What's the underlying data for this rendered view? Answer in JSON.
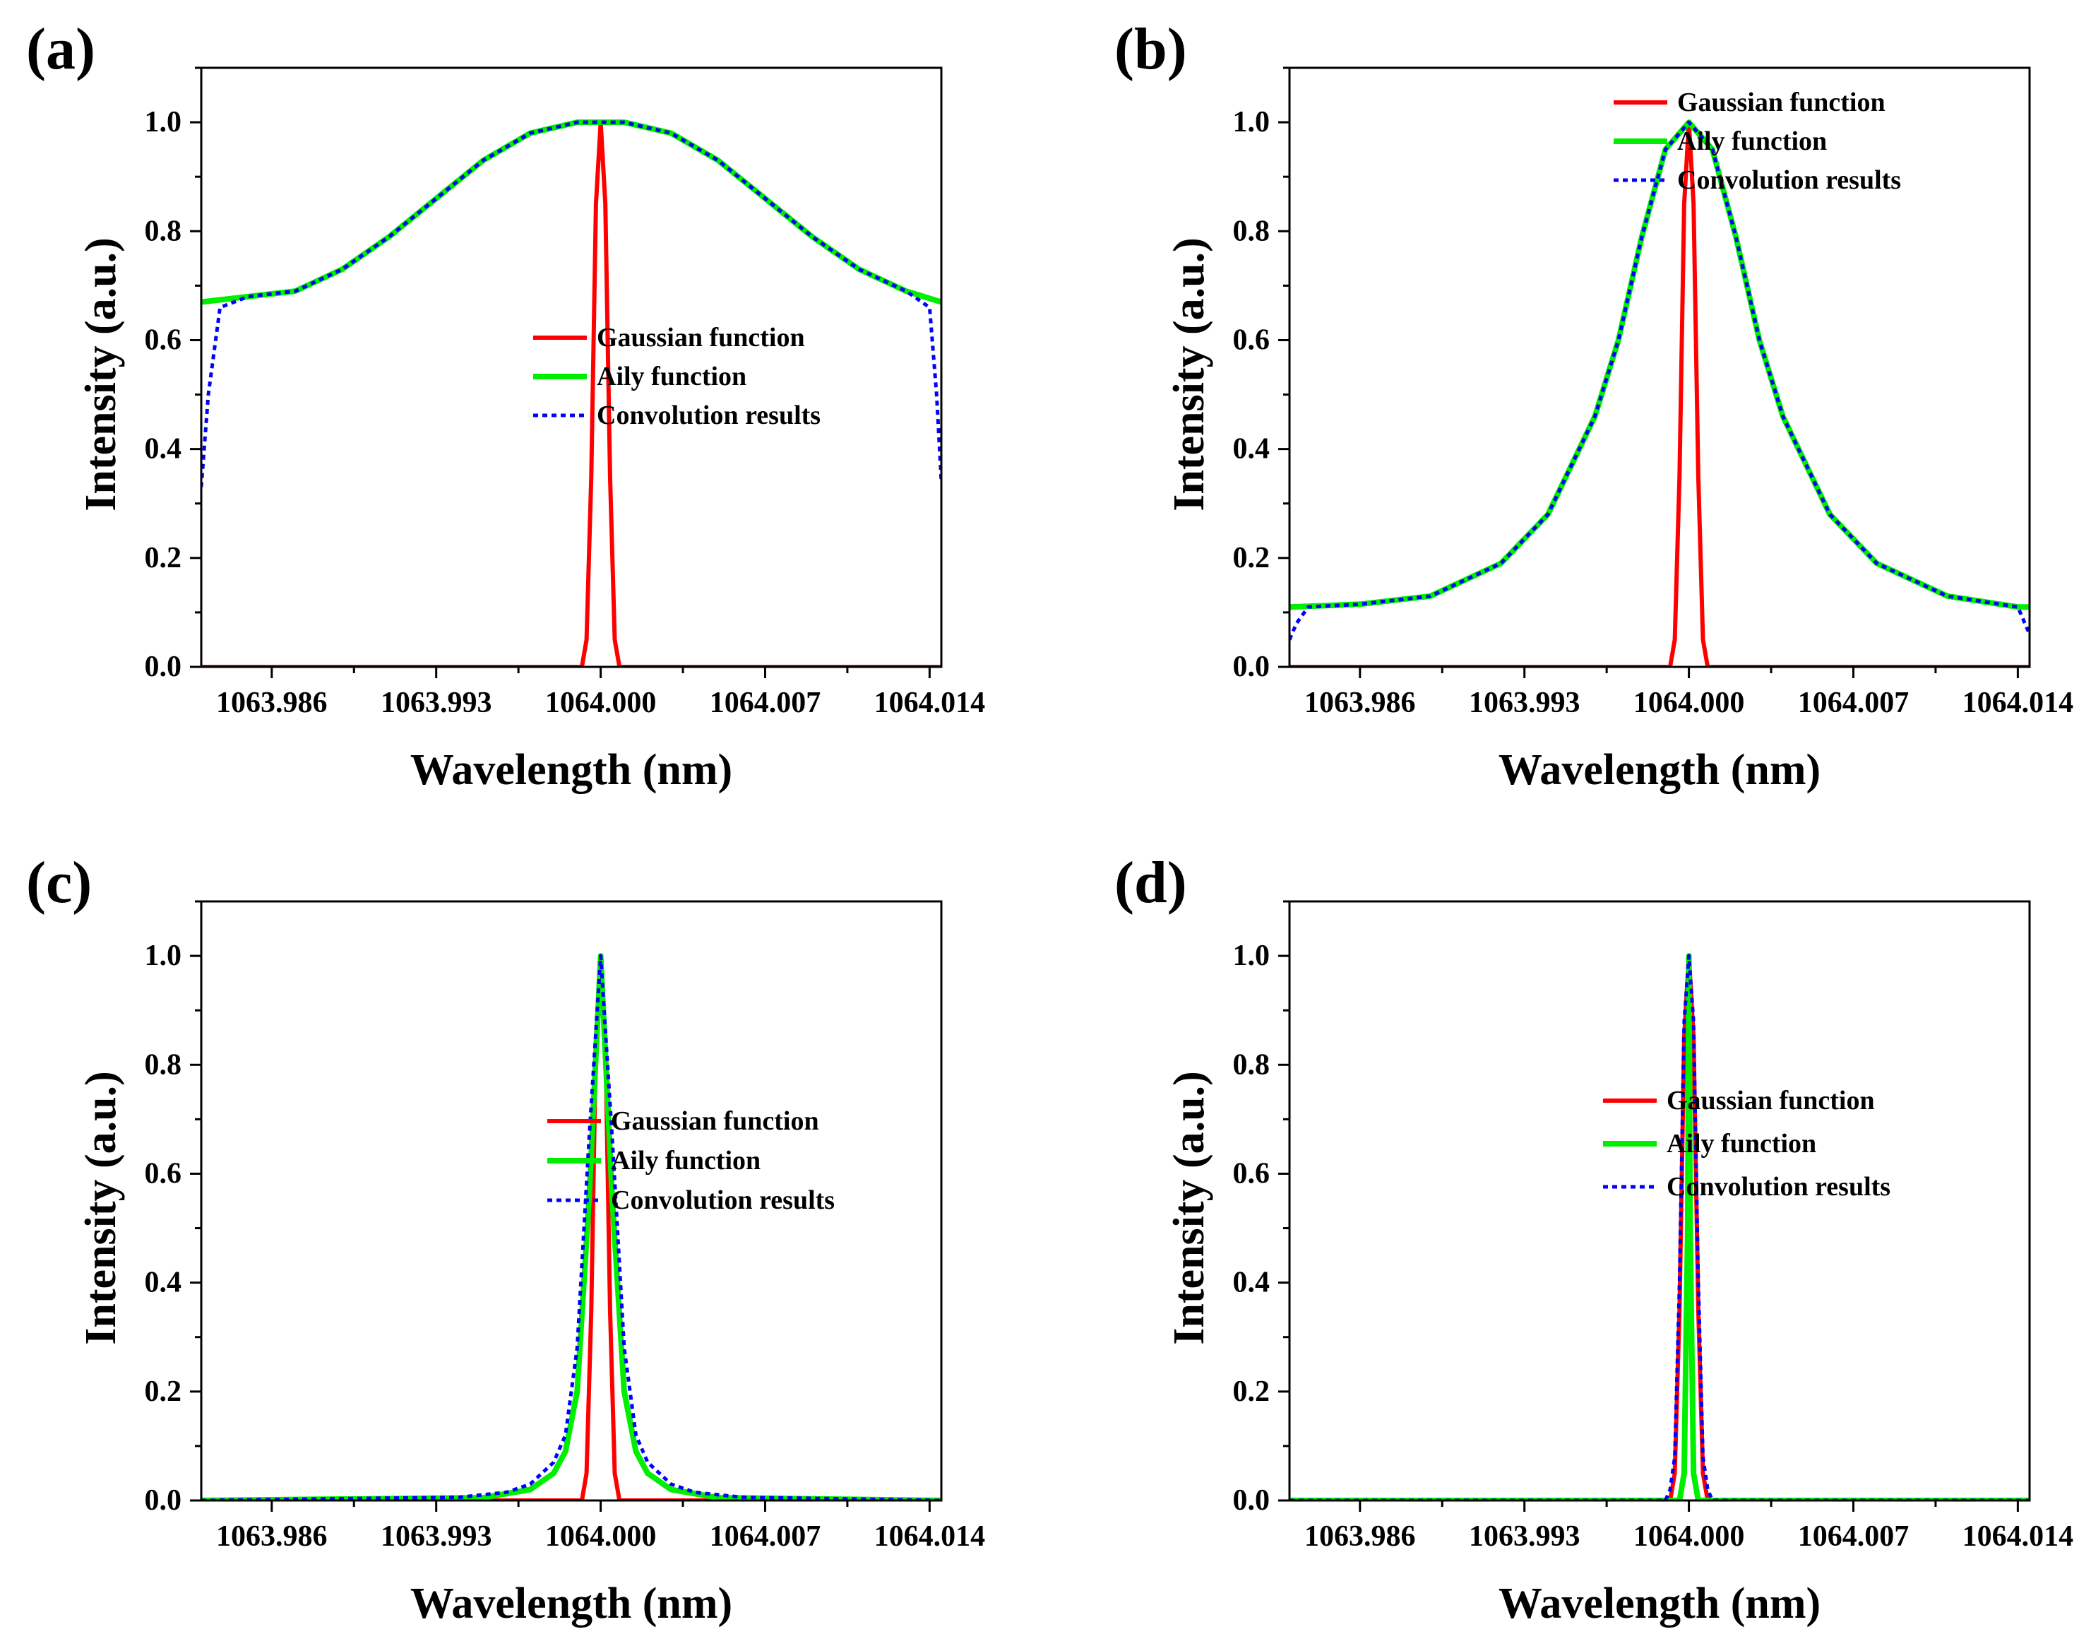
{
  "colors": {
    "gaussian": "#ff0000",
    "airy": "#00ee00",
    "convolution": "#0000ff",
    "axis": "#000000"
  },
  "chart_data": [
    {
      "panel": "(a)",
      "type": "line",
      "xlabel": "Wavelength (nm)",
      "ylabel": "Intensity (a.u.)",
      "xlim": [
        1063.983,
        1064.0145
      ],
      "ylim": [
        0,
        1.1
      ],
      "xticks": [
        1063.986,
        1063.993,
        1064.0,
        1064.007,
        1064.014
      ],
      "xticklabels": [
        "1063.986",
        "1063.993",
        "1064.000",
        "1064.007",
        "1064.014"
      ],
      "yticks": [
        0.0,
        0.2,
        0.4,
        0.6,
        0.8,
        1.0
      ],
      "yticklabels": [
        "0.0",
        "0.2",
        "0.4",
        "0.6",
        "0.8",
        "1.0"
      ],
      "legend": [
        "Gaussian function",
        "Aily function",
        "Convolution results"
      ],
      "legend_position": "center-right",
      "series": [
        {
          "name": "Gaussian function",
          "x": [
            1063.983,
            1063.9992,
            1063.9994,
            1063.9996,
            1063.9998,
            1064.0,
            1064.0002,
            1064.0004,
            1064.0006,
            1064.0008,
            1064.0145
          ],
          "y": [
            0.0,
            0.0,
            0.05,
            0.35,
            0.85,
            1.0,
            0.85,
            0.35,
            0.05,
            0.0,
            0.0
          ]
        },
        {
          "name": "Aily function",
          "x": [
            1063.983,
            1063.985,
            1063.987,
            1063.989,
            1063.991,
            1063.993,
            1063.995,
            1063.997,
            1063.999,
            1064.0,
            1064.001,
            1064.003,
            1064.005,
            1064.007,
            1064.009,
            1064.011,
            1064.013,
            1064.0145
          ],
          "y": [
            0.67,
            0.68,
            0.69,
            0.73,
            0.79,
            0.86,
            0.93,
            0.98,
            1.0,
            1.0,
            1.0,
            0.98,
            0.93,
            0.86,
            0.79,
            0.73,
            0.69,
            0.67
          ]
        },
        {
          "name": "Convolution results",
          "x": [
            1063.983,
            1063.9833,
            1063.9838,
            1063.985,
            1063.987,
            1063.989,
            1063.991,
            1063.993,
            1063.995,
            1063.997,
            1063.999,
            1064.0,
            1064.001,
            1064.003,
            1064.005,
            1064.007,
            1064.009,
            1064.011,
            1064.013,
            1064.014,
            1064.0143,
            1064.0145
          ],
          "y": [
            0.33,
            0.5,
            0.66,
            0.68,
            0.69,
            0.73,
            0.79,
            0.86,
            0.93,
            0.98,
            1.0,
            1.0,
            1.0,
            0.98,
            0.93,
            0.86,
            0.79,
            0.73,
            0.69,
            0.66,
            0.5,
            0.34
          ]
        }
      ]
    },
    {
      "panel": "(b)",
      "type": "line",
      "xlabel": "Wavelength (nm)",
      "ylabel": "Intensity (a.u.)",
      "xlim": [
        1063.983,
        1064.0145
      ],
      "ylim": [
        0,
        1.1
      ],
      "xticks": [
        1063.986,
        1063.993,
        1064.0,
        1064.007,
        1064.014
      ],
      "xticklabels": [
        "1063.986",
        "1063.993",
        "1064.000",
        "1064.007",
        "1064.014"
      ],
      "yticks": [
        0.0,
        0.2,
        0.4,
        0.6,
        0.8,
        1.0
      ],
      "yticklabels": [
        "0.0",
        "0.2",
        "0.4",
        "0.6",
        "0.8",
        "1.0"
      ],
      "legend": [
        "Gaussian function",
        "Aily function",
        "Convolution results"
      ],
      "legend_position": "top-right",
      "series": [
        {
          "name": "Gaussian function",
          "x": [
            1063.983,
            1063.9992,
            1063.9994,
            1063.9996,
            1063.9998,
            1064.0,
            1064.0002,
            1064.0004,
            1064.0006,
            1064.0008,
            1064.0145
          ],
          "y": [
            0.0,
            0.0,
            0.05,
            0.35,
            0.85,
            1.0,
            0.85,
            0.35,
            0.05,
            0.0,
            0.0
          ]
        },
        {
          "name": "Aily function",
          "x": [
            1063.983,
            1063.986,
            1063.989,
            1063.992,
            1063.994,
            1063.996,
            1063.997,
            1063.998,
            1063.999,
            1064.0,
            1064.001,
            1064.002,
            1064.003,
            1064.004,
            1064.006,
            1064.008,
            1064.011,
            1064.014,
            1064.0145
          ],
          "y": [
            0.11,
            0.115,
            0.13,
            0.19,
            0.28,
            0.46,
            0.6,
            0.79,
            0.95,
            1.0,
            0.95,
            0.79,
            0.6,
            0.46,
            0.28,
            0.19,
            0.13,
            0.11,
            0.11
          ]
        },
        {
          "name": "Convolution results",
          "x": [
            1063.983,
            1063.9833,
            1063.9838,
            1063.986,
            1063.989,
            1063.992,
            1063.994,
            1063.996,
            1063.997,
            1063.998,
            1063.999,
            1064.0,
            1064.001,
            1064.002,
            1064.003,
            1064.004,
            1064.006,
            1064.008,
            1064.011,
            1064.014,
            1064.0143,
            1064.0145
          ],
          "y": [
            0.05,
            0.08,
            0.11,
            0.115,
            0.13,
            0.19,
            0.28,
            0.46,
            0.6,
            0.79,
            0.95,
            1.0,
            0.95,
            0.79,
            0.6,
            0.46,
            0.28,
            0.19,
            0.13,
            0.11,
            0.08,
            0.06
          ]
        }
      ]
    },
    {
      "panel": "(c)",
      "type": "line",
      "xlabel": "Wavelength (nm)",
      "ylabel": "Intensity (a.u.)",
      "xlim": [
        1063.983,
        1064.0145
      ],
      "ylim": [
        0,
        1.1
      ],
      "xticks": [
        1063.986,
        1063.993,
        1064.0,
        1064.007,
        1064.014
      ],
      "xticklabels": [
        "1063.986",
        "1063.993",
        "1064.000",
        "1064.007",
        "1064.014"
      ],
      "yticks": [
        0.0,
        0.2,
        0.4,
        0.6,
        0.8,
        1.0
      ],
      "yticklabels": [
        "0.0",
        "0.2",
        "0.4",
        "0.6",
        "0.8",
        "1.0"
      ],
      "legend": [
        "Gaussian function",
        "Aily function",
        "Convolution results"
      ],
      "legend_position": "center-right",
      "series": [
        {
          "name": "Gaussian function",
          "x": [
            1063.983,
            1063.9992,
            1063.9994,
            1063.9996,
            1063.9998,
            1064.0,
            1064.0002,
            1064.0004,
            1064.0006,
            1064.0008,
            1064.0145
          ],
          "y": [
            0.0,
            0.0,
            0.05,
            0.35,
            0.85,
            1.0,
            0.85,
            0.35,
            0.05,
            0.0,
            0.0
          ]
        },
        {
          "name": "Aily function",
          "x": [
            1063.983,
            1063.995,
            1063.997,
            1063.998,
            1063.9985,
            1063.999,
            1063.9995,
            1064.0,
            1064.0005,
            1064.001,
            1064.0015,
            1064.002,
            1064.003,
            1064.005,
            1064.0145
          ],
          "y": [
            0.0,
            0.005,
            0.02,
            0.05,
            0.09,
            0.2,
            0.55,
            1.0,
            0.55,
            0.2,
            0.09,
            0.05,
            0.02,
            0.005,
            0.0
          ]
        },
        {
          "name": "Convolution results",
          "x": [
            1063.983,
            1063.994,
            1063.996,
            1063.997,
            1063.998,
            1063.9985,
            1063.999,
            1063.9995,
            1064.0,
            1064.0005,
            1064.001,
            1064.0015,
            1064.002,
            1064.003,
            1064.004,
            1064.006,
            1064.0145
          ],
          "y": [
            0.0,
            0.006,
            0.015,
            0.03,
            0.07,
            0.12,
            0.28,
            0.66,
            1.0,
            0.66,
            0.28,
            0.12,
            0.07,
            0.03,
            0.015,
            0.006,
            0.0
          ]
        }
      ]
    },
    {
      "panel": "(d)",
      "type": "line",
      "xlabel": "Wavelength (nm)",
      "ylabel": "Intensity (a.u.)",
      "xlim": [
        1063.983,
        1064.0145
      ],
      "ylim": [
        0,
        1.1
      ],
      "xticks": [
        1063.986,
        1063.993,
        1064.0,
        1064.007,
        1064.014
      ],
      "xticklabels": [
        "1063.986",
        "1063.993",
        "1064.000",
        "1064.007",
        "1064.014"
      ],
      "yticks": [
        0.0,
        0.2,
        0.4,
        0.6,
        0.8,
        1.0
      ],
      "yticklabels": [
        "0.0",
        "0.2",
        "0.4",
        "0.6",
        "0.8",
        "1.0"
      ],
      "legend": [
        "Gaussian function",
        "Aily function",
        "Convolution results"
      ],
      "legend_position": "center-right",
      "series": [
        {
          "name": "Gaussian function",
          "x": [
            1063.983,
            1063.9992,
            1063.9994,
            1063.9996,
            1063.9998,
            1064.0,
            1064.0002,
            1064.0004,
            1064.0006,
            1064.0008,
            1064.0145
          ],
          "y": [
            0.0,
            0.0,
            0.05,
            0.35,
            0.85,
            1.0,
            0.85,
            0.35,
            0.05,
            0.0,
            0.0
          ]
        },
        {
          "name": "Aily function",
          "x": [
            1063.983,
            1063.9996,
            1063.9998,
            1063.99995,
            1064.0,
            1064.00005,
            1064.0002,
            1064.0004,
            1064.0145
          ],
          "y": [
            0.0,
            0.0,
            0.05,
            0.5,
            1.0,
            0.5,
            0.05,
            0.0,
            0.0
          ]
        },
        {
          "name": "Convolution results",
          "x": [
            1063.983,
            1063.999,
            1063.9992,
            1063.9994,
            1063.9996,
            1063.9998,
            1064.0,
            1064.0002,
            1064.0004,
            1064.0006,
            1064.0008,
            1064.001,
            1064.0145
          ],
          "y": [
            0.0,
            0.0,
            0.02,
            0.08,
            0.4,
            0.88,
            1.0,
            0.88,
            0.4,
            0.08,
            0.02,
            0.0,
            0.0
          ]
        }
      ]
    }
  ]
}
